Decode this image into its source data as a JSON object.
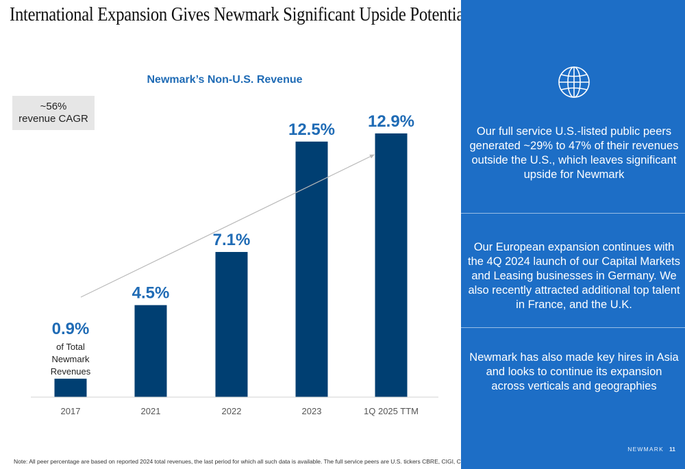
{
  "slide": {
    "title": "International Expansion Gives Newmark Significant Upside Potential",
    "note": "Note: All peer percentage are based on reported 2024 total revenues, the last period for which all such data is available. The full service peers are U.S. tickers CBRE, CIGI, CWK, and JLL.",
    "brand": "NEWMARK",
    "page_number": "11"
  },
  "cagr_box": {
    "line1": "~56%",
    "line2": "revenue CAGR"
  },
  "first_bar_annotation": [
    "of Total",
    "Newmark",
    "Revenues"
  ],
  "chart_data": {
    "type": "bar",
    "title": "Newmark’s Non-U.S. Revenue",
    "xlabel": "",
    "ylabel": "",
    "categories": [
      "2017",
      "2021",
      "2022",
      "2023",
      "1Q 2025 TTM"
    ],
    "values": [
      0.9,
      4.5,
      7.1,
      12.5,
      12.9
    ],
    "value_labels": [
      "0.9%",
      "4.5%",
      "7.1%",
      "12.5%",
      "12.9%"
    ],
    "ylim": [
      0,
      14
    ],
    "grid": false,
    "legend": "none",
    "bar_color": "#003f72",
    "label_color": "#1f6bb5",
    "trend_arrow": true
  },
  "panel": {
    "icon": "globe-icon",
    "background": "#1d6ec6",
    "items": [
      "Our full service U.S.-listed public peers generated ~29% to 47% of their revenues outside the U.S., which leaves significant upside for Newmark",
      "Our European expansion continues with the 4Q 2024 launch of our Capital Markets and Leasing businesses in Germany. We also recently attracted additional top talent in France, and the U.K.",
      "Newmark has also made key hires in Asia and looks to continue its expansion across verticals and geographies"
    ]
  }
}
